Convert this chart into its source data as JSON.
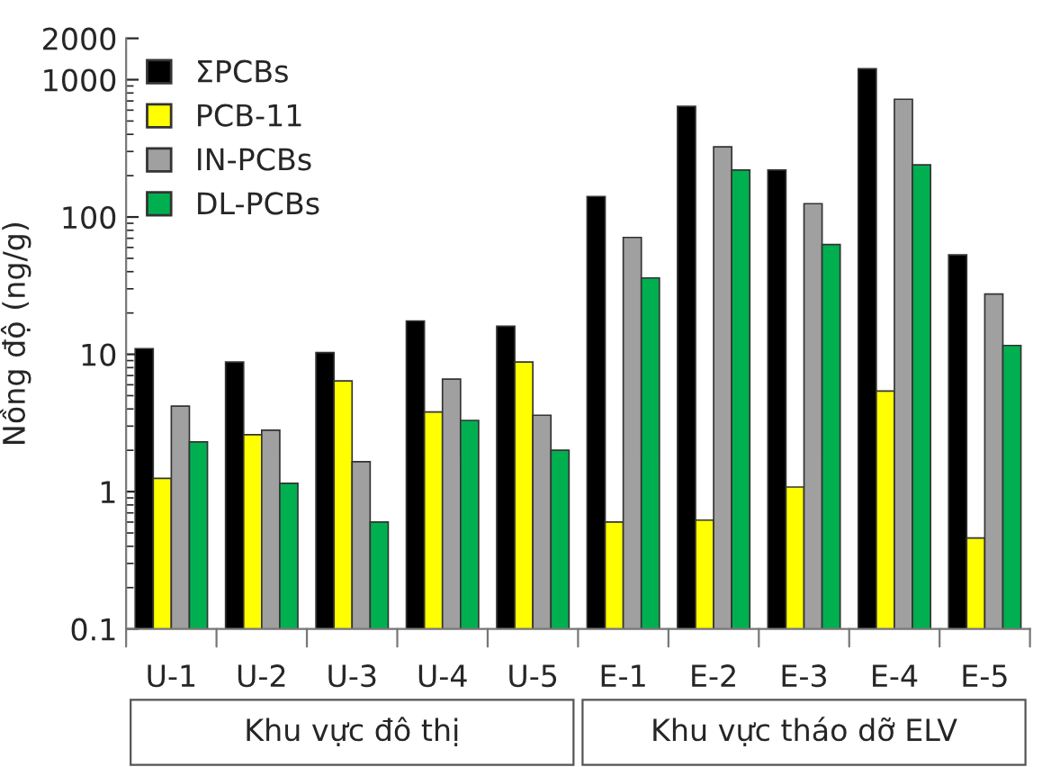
{
  "chart_data": {
    "type": "bar",
    "ylabel": "Nồng độ (ng/g)",
    "categories": [
      "U-1",
      "U-2",
      "U-3",
      "U-4",
      "U-5",
      "E-1",
      "E-2",
      "E-3",
      "E-4",
      "E-5"
    ],
    "series": [
      {
        "name": "ΣPCBs",
        "color": "#000000",
        "values": [
          11,
          8.8,
          10.3,
          17.5,
          16,
          141,
          640,
          220,
          1200,
          53
        ]
      },
      {
        "name": "PCB-11",
        "color": "#ffff00",
        "values": [
          1.25,
          2.6,
          6.4,
          3.8,
          8.8,
          0.6,
          0.62,
          1.08,
          5.4,
          0.46
        ]
      },
      {
        "name": "IN-PCBs",
        "color": "#a0a0a0",
        "values": [
          4.2,
          2.8,
          1.65,
          6.6,
          3.6,
          71,
          324,
          125,
          720,
          27.5
        ]
      },
      {
        "name": "DL-PCBs",
        "color": "#00b050",
        "values": [
          2.3,
          1.15,
          0.6,
          3.3,
          2.0,
          36,
          220,
          63,
          240,
          11.6
        ]
      }
    ],
    "log": "y",
    "ylim": [
      0.1,
      2000
    ],
    "yticks": [
      0.1,
      1,
      10,
      100,
      1000,
      2000
    ],
    "annotations": [
      "Khu vực đô thị",
      "Khu vực tháo dỡ ELV"
    ],
    "legend": "top left",
    "grid": false
  }
}
